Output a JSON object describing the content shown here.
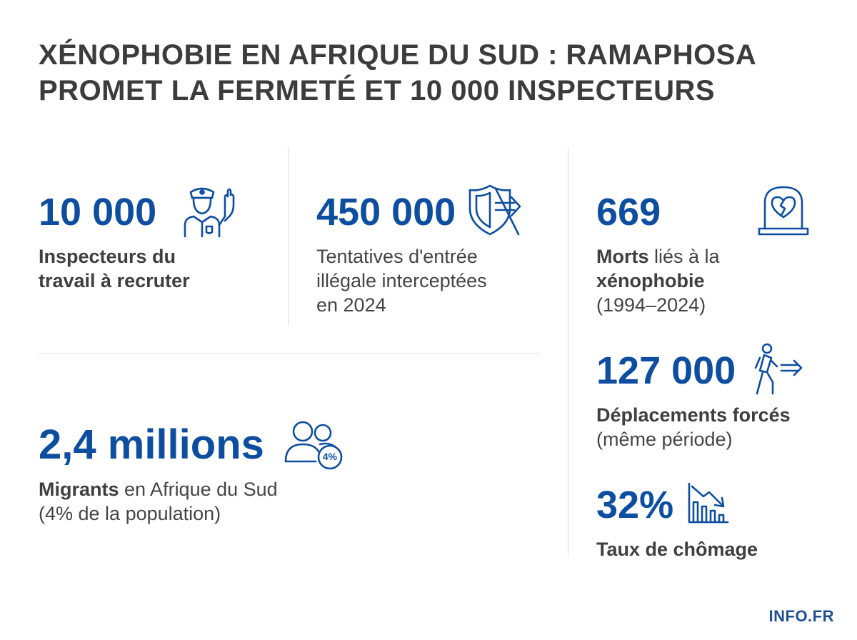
{
  "title": {
    "line1": "XÉNOPHOBIE EN AFRIQUE DU SUD : RAMAPHOSA",
    "line2": "PROMET LA FERMETÉ ET 10 000 INSPECTEURS"
  },
  "stats": {
    "inspectors": {
      "value": "10 000",
      "desc_line1": "Inspecteurs du",
      "desc_line2": "travail à recruter",
      "icon": "police-officer-icon"
    },
    "border": {
      "value": "450 000",
      "desc_line1": "Tentatives d'entrée",
      "desc_line2": "illégale interceptées",
      "desc_line3": "en 2024",
      "icon": "shield-arrow-icon"
    },
    "deaths": {
      "value": "669",
      "desc_bold1": "Morts",
      "desc_rest1": " liés à la",
      "desc_bold2": "xénophobie",
      "desc_line3": "(1994–2024)",
      "icon": "tombstone-broken-heart-icon"
    },
    "displacements": {
      "value": "127 000",
      "desc_bold": "Déplacements forcés",
      "desc_line2": "(même période)",
      "icon": "walking-person-arrow-icon"
    },
    "migrants": {
      "value": "2,4 millions",
      "desc_bold": "Migrants",
      "desc_rest": " en Afrique du Sud",
      "desc_line2": "(4% de la population)",
      "badge": "4%",
      "icon": "people-group-icon"
    },
    "unemployment": {
      "value": "32%",
      "desc": "Taux de chômage",
      "icon": "declining-chart-icon"
    }
  },
  "brand": "INFO.FR",
  "colors": {
    "accent": "#0d4ea0",
    "text": "#444444",
    "title": "#3c3c3c"
  }
}
